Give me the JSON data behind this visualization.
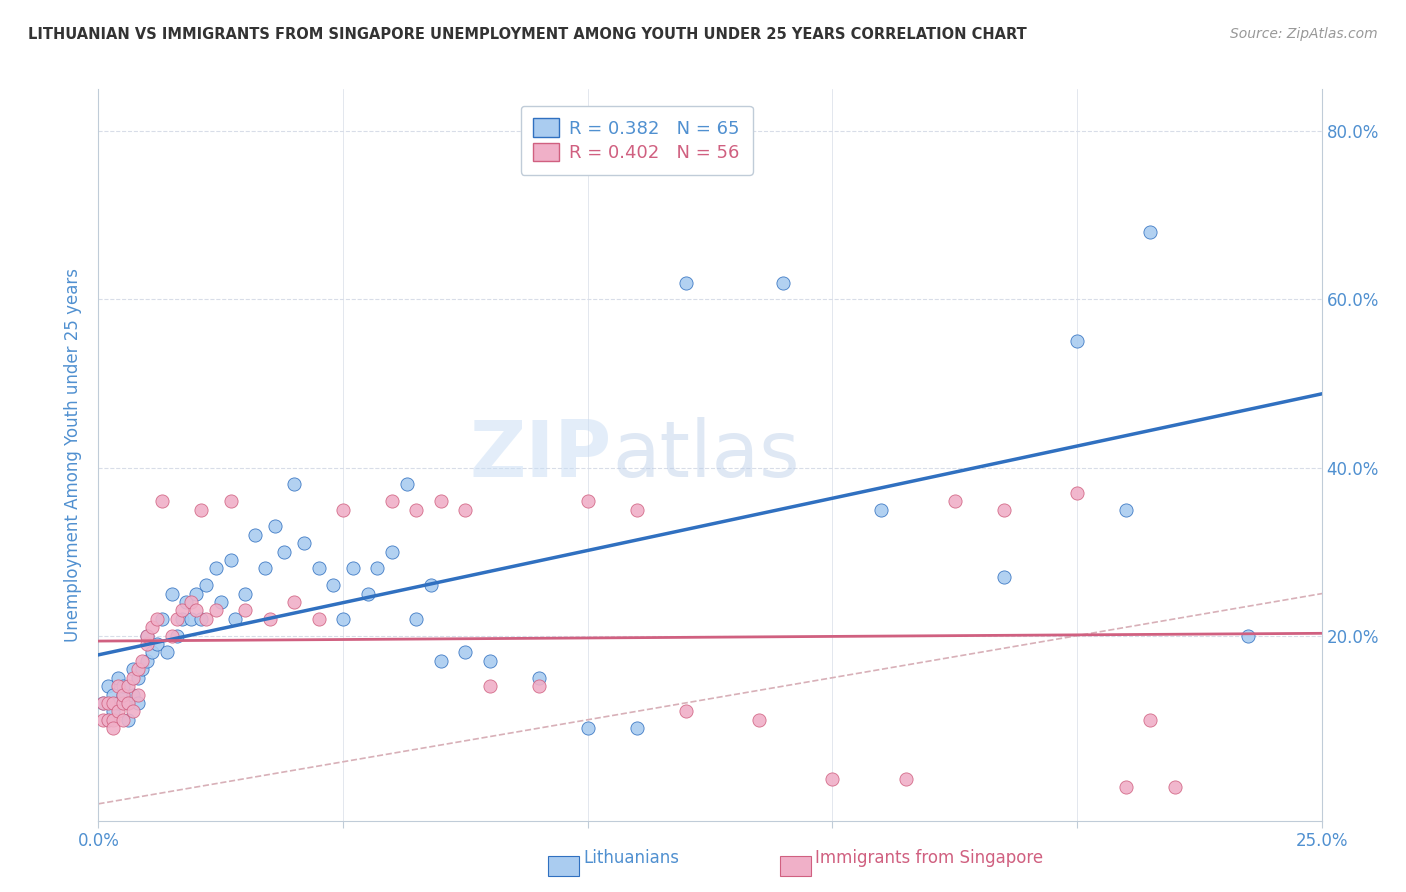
{
  "title": "LITHUANIAN VS IMMIGRANTS FROM SINGAPORE UNEMPLOYMENT AMONG YOUTH UNDER 25 YEARS CORRELATION CHART",
  "source": "Source: ZipAtlas.com",
  "ylabel": "Unemployment Among Youth under 25 years",
  "xlim": [
    0.0,
    0.25
  ],
  "ylim": [
    -0.02,
    0.85
  ],
  "xticks": [
    0.0,
    0.05,
    0.1,
    0.15,
    0.2,
    0.25
  ],
  "yticks": [
    0.0,
    0.2,
    0.4,
    0.6,
    0.8
  ],
  "ytick_labels": [
    "",
    "20.0%",
    "40.0%",
    "60.0%",
    "80.0%"
  ],
  "xtick_labels": [
    "0.0%",
    "",
    "",
    "",
    "",
    "25.0%"
  ],
  "background_color": "#ffffff",
  "watermark_zip": "ZIP",
  "watermark_atlas": "atlas",
  "legend_R1": "R = 0.382",
  "legend_N1": "N = 65",
  "legend_R2": "R = 0.402",
  "legend_N2": "N = 56",
  "color_blue": "#aaccf0",
  "color_pink": "#f0b0c8",
  "color_blue_line": "#3070c0",
  "color_pink_line": "#d06080",
  "color_diag": "#d8b0b8",
  "axis_color": "#5090d0",
  "grid_color": "#d8dde8",
  "blue_x": [
    0.001,
    0.002,
    0.002,
    0.003,
    0.003,
    0.004,
    0.004,
    0.005,
    0.005,
    0.006,
    0.006,
    0.007,
    0.007,
    0.008,
    0.008,
    0.009,
    0.01,
    0.01,
    0.011,
    0.012,
    0.013,
    0.014,
    0.015,
    0.016,
    0.017,
    0.018,
    0.019,
    0.02,
    0.021,
    0.022,
    0.024,
    0.025,
    0.027,
    0.028,
    0.03,
    0.032,
    0.034,
    0.036,
    0.038,
    0.04,
    0.042,
    0.045,
    0.048,
    0.05,
    0.052,
    0.055,
    0.057,
    0.06,
    0.063,
    0.065,
    0.068,
    0.07,
    0.075,
    0.08,
    0.09,
    0.1,
    0.11,
    0.12,
    0.14,
    0.16,
    0.185,
    0.2,
    0.21,
    0.215,
    0.235
  ],
  "blue_y": [
    0.12,
    0.1,
    0.14,
    0.11,
    0.13,
    0.12,
    0.15,
    0.13,
    0.14,
    0.12,
    0.1,
    0.16,
    0.13,
    0.12,
    0.15,
    0.16,
    0.2,
    0.17,
    0.18,
    0.19,
    0.22,
    0.18,
    0.25,
    0.2,
    0.22,
    0.24,
    0.22,
    0.25,
    0.22,
    0.26,
    0.28,
    0.24,
    0.29,
    0.22,
    0.25,
    0.32,
    0.28,
    0.33,
    0.3,
    0.38,
    0.31,
    0.28,
    0.26,
    0.22,
    0.28,
    0.25,
    0.28,
    0.3,
    0.38,
    0.22,
    0.26,
    0.17,
    0.18,
    0.17,
    0.15,
    0.09,
    0.09,
    0.62,
    0.62,
    0.35,
    0.27,
    0.55,
    0.35,
    0.68,
    0.2
  ],
  "pink_x": [
    0.001,
    0.001,
    0.002,
    0.002,
    0.003,
    0.003,
    0.003,
    0.004,
    0.004,
    0.005,
    0.005,
    0.005,
    0.006,
    0.006,
    0.007,
    0.007,
    0.008,
    0.008,
    0.009,
    0.01,
    0.01,
    0.011,
    0.012,
    0.013,
    0.015,
    0.016,
    0.017,
    0.019,
    0.02,
    0.021,
    0.022,
    0.024,
    0.027,
    0.03,
    0.035,
    0.04,
    0.045,
    0.05,
    0.06,
    0.065,
    0.07,
    0.075,
    0.08,
    0.09,
    0.1,
    0.11,
    0.12,
    0.135,
    0.15,
    0.165,
    0.175,
    0.185,
    0.2,
    0.21,
    0.215,
    0.22
  ],
  "pink_y": [
    0.12,
    0.1,
    0.1,
    0.12,
    0.1,
    0.12,
    0.09,
    0.11,
    0.14,
    0.12,
    0.13,
    0.1,
    0.12,
    0.14,
    0.11,
    0.15,
    0.13,
    0.16,
    0.17,
    0.19,
    0.2,
    0.21,
    0.22,
    0.36,
    0.2,
    0.22,
    0.23,
    0.24,
    0.23,
    0.35,
    0.22,
    0.23,
    0.36,
    0.23,
    0.22,
    0.24,
    0.22,
    0.35,
    0.36,
    0.35,
    0.36,
    0.35,
    0.14,
    0.14,
    0.36,
    0.35,
    0.11,
    0.1,
    0.03,
    0.03,
    0.36,
    0.35,
    0.37,
    0.02,
    0.1,
    0.02
  ]
}
